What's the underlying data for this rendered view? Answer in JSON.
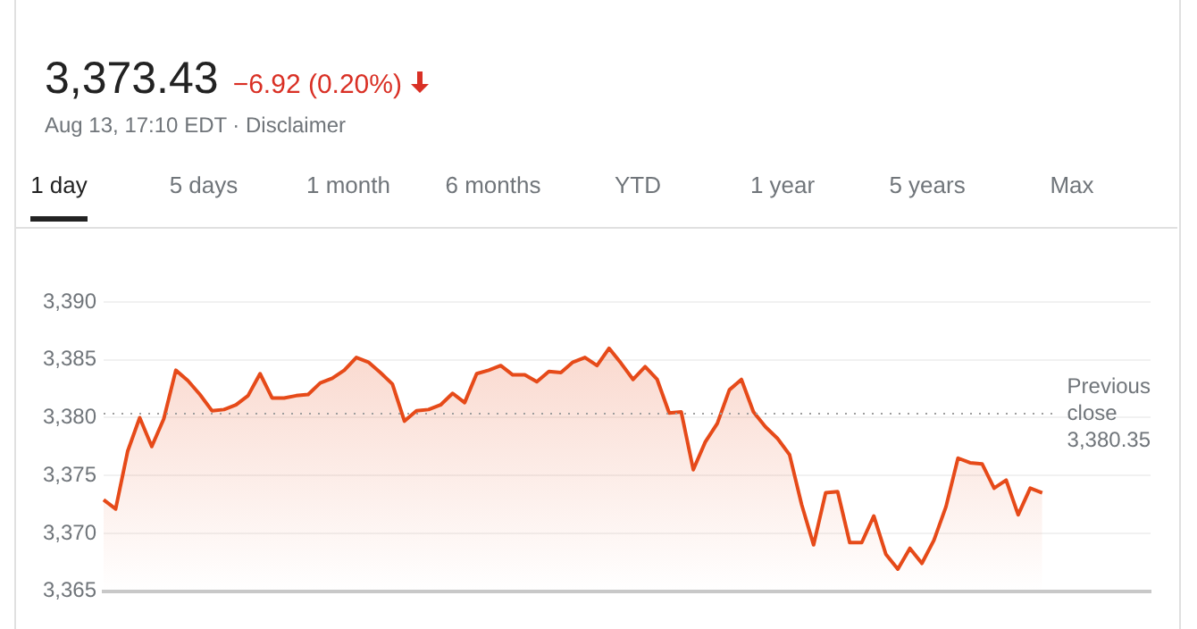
{
  "chart_data": {
    "type": "area",
    "title": "3,373.43",
    "subtitle": "−6.92 (0.20%)",
    "annotations": [
      "Aug 13, 17:10 EDT · Disclaimer",
      "1 day",
      "5 days",
      "1 month",
      "6 months",
      "YTD",
      "1 year",
      "5 years",
      "Max"
    ],
    "categories": [
      null,
      null,
      null,
      null,
      null,
      null,
      null,
      null,
      null,
      null,
      null,
      null,
      null,
      null,
      null,
      null,
      null,
      null,
      null,
      null,
      null,
      null,
      null,
      null,
      null,
      null,
      null,
      null,
      null,
      null,
      null,
      null,
      null,
      null,
      null,
      null,
      null,
      null,
      null,
      null,
      null,
      null,
      null,
      null,
      null,
      null,
      null,
      null,
      null,
      null,
      null,
      null,
      null,
      null,
      null,
      null,
      null,
      null,
      null,
      null,
      null,
      null,
      null,
      null,
      null,
      null,
      null,
      null,
      null,
      null,
      null,
      null,
      null,
      null,
      null,
      null,
      null,
      null,
      null,
      null,
      null,
      null,
      null,
      null,
      null,
      null,
      null,
      null
    ],
    "series": [
      {
        "color": "#e64a19",
        "values": [
          3372.9,
          3372.1,
          3377.1,
          3380.0,
          3377.5,
          3379.9,
          3384.1,
          3383.2,
          3382.0,
          3380.6,
          3380.7,
          3381.1,
          3381.9,
          3383.8,
          3381.7,
          3381.7,
          3381.9,
          3382.0,
          3383.0,
          3383.4,
          3384.1,
          3385.2,
          3384.8,
          3383.9,
          3382.9,
          3379.7,
          3380.6,
          3380.7,
          3381.1,
          3382.1,
          3381.3,
          3383.8,
          3384.1,
          3384.5,
          3383.7,
          3383.7,
          3383.1,
          3384.0,
          3383.9,
          3384.8,
          3385.2,
          3384.5,
          3386.0,
          3384.7,
          3383.3,
          3384.4,
          3383.3,
          3380.4,
          3380.5,
          3375.5,
          3377.9,
          3379.5,
          3382.4,
          3383.3,
          3380.5,
          3379.2,
          3378.2,
          3376.8,
          3372.5,
          3369.0,
          3373.5,
          3373.6,
          3369.2,
          3369.2,
          3371.5,
          3368.2,
          3366.9,
          3368.7,
          3367.4,
          3369.4,
          3372.3,
          3376.5,
          3376.1,
          3376.0,
          3373.9,
          3374.6,
          3371.6,
          3373.9,
          3373.5,
          null,
          null,
          null,
          null,
          null,
          null,
          null,
          null,
          null
        ]
      }
    ],
    "ylim": [
      3365,
      3390
    ],
    "yticks": [
      {
        "value": 3365,
        "label": "3,365"
      },
      {
        "value": 3370,
        "label": "3,370"
      },
      {
        "value": 3375,
        "label": "3,375"
      },
      {
        "value": 3380,
        "label": "3,380"
      },
      {
        "value": 3385,
        "label": "3,385"
      },
      {
        "value": 3390,
        "label": "3,390"
      }
    ],
    "grid": "y",
    "tick_labels": "y",
    "marker": "none",
    "line_style": "solid",
    "ref_lines": [
      {
        "axis": "y",
        "value": 3380.35,
        "label": "Previous close 3,380.35",
        "color": "#9e9e9e",
        "line_style": "dotted"
      }
    ]
  }
}
